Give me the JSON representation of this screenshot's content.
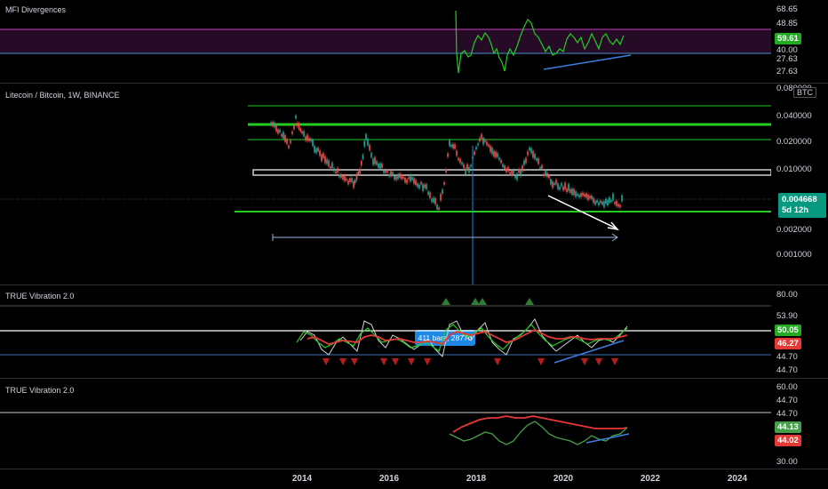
{
  "panes": {
    "mfi": {
      "title": "MFI Divergences",
      "axis_labels": [
        "68.65",
        "48.85",
        "40.00",
        "27.63",
        "27.63"
      ],
      "tags": [
        {
          "label": "59.61",
          "color": "#22ab23"
        }
      ]
    },
    "price": {
      "title": "Litecoin / Bitcoin, 1W, BINANCE",
      "currency_badge": "BTC",
      "axis_labels": [
        "0.080000",
        "0.040000",
        "0.020000",
        "0.010000",
        "0.002000",
        "0.001000"
      ],
      "current_price": "0.004668",
      "countdown": "5d 12h",
      "measure_label": "411 bars, 2877d"
    },
    "vib1": {
      "title": "TRUE Vibration 2.0",
      "axis_labels": [
        "80.00",
        "53.90",
        "44.70",
        "44.70"
      ],
      "tags": [
        {
          "label": "50.05",
          "color": "#22ab23"
        },
        {
          "label": "46.27",
          "color": "#e53935"
        }
      ]
    },
    "vib2": {
      "title": "TRUE Vibration 2.0",
      "axis_labels": [
        "60.00",
        "44.70",
        "44.70",
        "30.00"
      ],
      "tags": [
        {
          "label": "44.13",
          "color": "#43a047"
        },
        {
          "label": "44.02",
          "color": "#e53935"
        }
      ]
    }
  },
  "time_axis": [
    "2014",
    "2016",
    "2018",
    "2020",
    "2022",
    "2024"
  ],
  "colors": {
    "background": "#000000",
    "green_line": "#22cc22",
    "red_line": "#e53935",
    "white_line": "#ffffff",
    "blue_trend": "#3d7fe0",
    "magenta": "#c040c0",
    "up_candle": "#26a69a",
    "down_candle": "#ef5350"
  }
}
